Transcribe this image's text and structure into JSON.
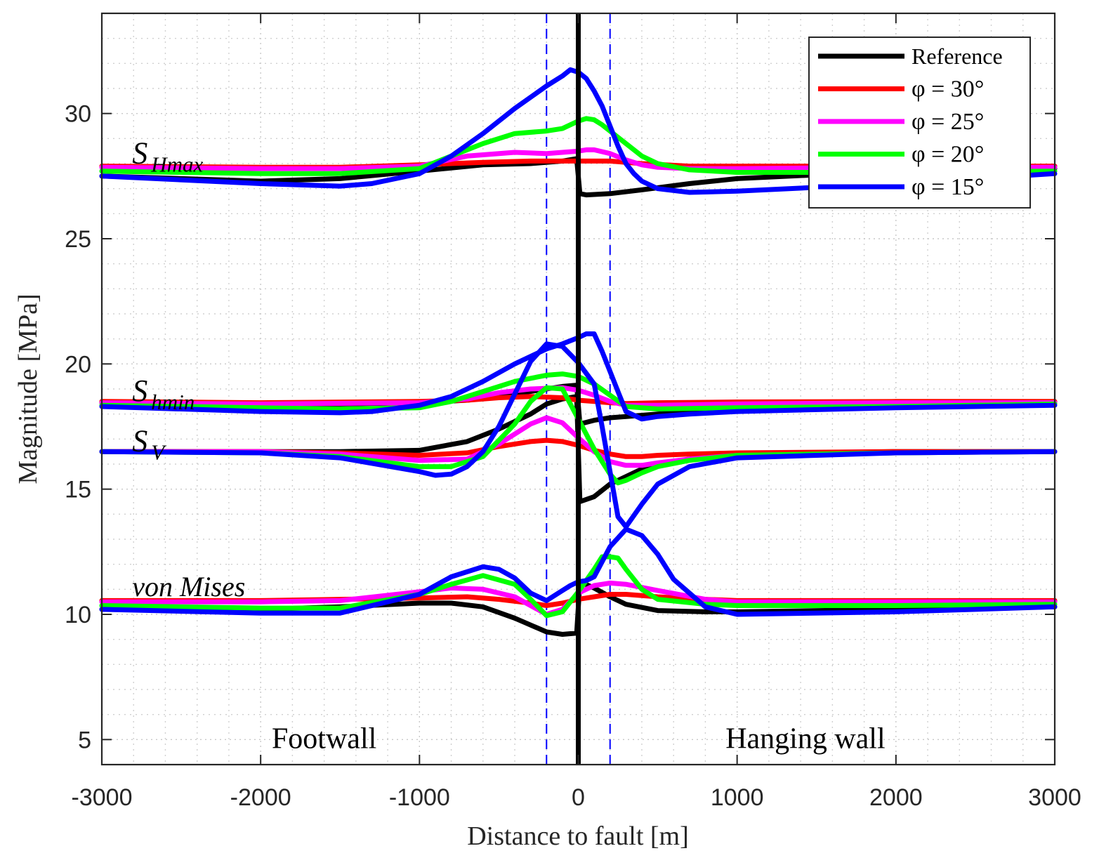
{
  "chart_data": {
    "type": "line",
    "title": "",
    "xlabel": "Distance to fault [m]",
    "ylabel": "Magnitude [MPa]",
    "xlim": [
      -3000,
      3000
    ],
    "ylim": [
      4,
      34
    ],
    "xticks": [
      -3000,
      -2000,
      -1000,
      0,
      1000,
      2000,
      3000
    ],
    "xtick_labels": [
      "-3000",
      "-2000",
      "-1000",
      "0",
      "1000",
      "2000",
      "3000"
    ],
    "yticks": [
      5,
      10,
      15,
      20,
      25,
      30
    ],
    "ytick_labels": [
      "5",
      "10",
      "15",
      "20",
      "25",
      "30"
    ],
    "grid": "major and minor (dotted)",
    "legend_position": "top-right",
    "legend": [
      {
        "label": "Reference",
        "color": "#000000"
      },
      {
        "label": "φ = 30°",
        "color": "#ff0000"
      },
      {
        "label": "φ = 25°",
        "color": "#ff00ff"
      },
      {
        "label": "φ = 20°",
        "color": "#00ff00"
      },
      {
        "label": "φ = 15°",
        "color": "#0000ff"
      }
    ],
    "annotations": {
      "shmax": {
        "main": "S",
        "sub": "Hmax",
        "x": -2800,
        "y": 28.3
      },
      "shmin": {
        "main": "S",
        "sub": "hmin",
        "x": -2800,
        "y": 18.8
      },
      "sv": {
        "main": "S",
        "sub": "V",
        "x": -2800,
        "y": 16.8
      },
      "vonmises": {
        "text": "von Mises",
        "x": -2800,
        "y": 10.9
      },
      "footwall": {
        "text": "Footwall",
        "x": -1600,
        "y": 5
      },
      "hangingwall": {
        "text": "Hanging wall",
        "x": 1430,
        "y": 5
      }
    },
    "vertical_lines": [
      {
        "name": "fault",
        "x": 0,
        "color": "#000000",
        "style": "solid"
      },
      {
        "name": "damage-zone-left",
        "x": -200,
        "color": "#0000ff",
        "style": "dashed"
      },
      {
        "name": "damage-zone-right",
        "x": 200,
        "color": "#0000ff",
        "style": "dashed"
      }
    ],
    "series": [
      {
        "name": "Reference",
        "group": "SHmax",
        "color": "#000000",
        "x": [
          -3000,
          -2000,
          -1500,
          -1000,
          -600,
          -300,
          -100,
          -10,
          10,
          50,
          200,
          400,
          700,
          1000,
          1500,
          2000,
          3000
        ],
        "y": [
          27.5,
          27.3,
          27.4,
          27.7,
          27.95,
          28.0,
          28.1,
          28.2,
          26.8,
          26.75,
          26.8,
          26.95,
          27.2,
          27.4,
          27.55,
          27.65,
          27.8
        ]
      },
      {
        "name": "φ = 30°",
        "group": "SHmax",
        "color": "#ff0000",
        "x": [
          -3000,
          -2000,
          -1500,
          -1000,
          -600,
          -300,
          0,
          200,
          400,
          700,
          1000,
          2000,
          3000
        ],
        "y": [
          27.9,
          27.85,
          27.85,
          27.95,
          28.05,
          28.1,
          28.1,
          28.1,
          28.0,
          27.9,
          27.9,
          27.9,
          27.9
        ]
      },
      {
        "name": "φ = 25°",
        "group": "SHmax",
        "color": "#ff00ff",
        "x": [
          -3000,
          -2000,
          -1500,
          -1000,
          -700,
          -400,
          -200,
          -100,
          0,
          50,
          100,
          200,
          300,
          400,
          500,
          700,
          1000,
          2000,
          3000
        ],
        "y": [
          27.85,
          27.8,
          27.8,
          27.9,
          28.3,
          28.45,
          28.4,
          28.45,
          28.5,
          28.55,
          28.55,
          28.4,
          28.15,
          27.95,
          27.85,
          27.8,
          27.8,
          27.85,
          27.85
        ]
      },
      {
        "name": "φ = 20°",
        "group": "SHmax",
        "color": "#00ff00",
        "x": [
          -3000,
          -2000,
          -1500,
          -1000,
          -800,
          -600,
          -400,
          -200,
          -100,
          0,
          50,
          100,
          150,
          200,
          300,
          400,
          500,
          700,
          1000,
          2000,
          3000
        ],
        "y": [
          27.7,
          27.6,
          27.6,
          27.8,
          28.3,
          28.8,
          29.2,
          29.3,
          29.4,
          29.7,
          29.8,
          29.75,
          29.55,
          29.3,
          28.8,
          28.3,
          28.0,
          27.75,
          27.65,
          27.65,
          27.7
        ]
      },
      {
        "name": "φ = 15°",
        "group": "SHmax",
        "color": "#0000ff",
        "x": [
          -3000,
          -2000,
          -1500,
          -1300,
          -1000,
          -800,
          -600,
          -400,
          -200,
          -100,
          -50,
          0,
          50,
          100,
          150,
          200,
          250,
          300,
          350,
          400,
          500,
          700,
          1000,
          2000,
          3000
        ],
        "y": [
          27.5,
          27.2,
          27.1,
          27.2,
          27.6,
          28.3,
          29.2,
          30.2,
          31.1,
          31.5,
          31.75,
          31.65,
          31.4,
          30.9,
          30.3,
          29.5,
          28.7,
          28.0,
          27.6,
          27.3,
          27.0,
          26.85,
          26.9,
          27.2,
          27.6
        ]
      },
      {
        "name": "Reference",
        "group": "Shmin",
        "color": "#000000",
        "x": [
          -3000,
          -2000,
          -1500,
          -1000,
          -700,
          -500,
          -300,
          -100,
          -10,
          10,
          100,
          200,
          400,
          700,
          1000,
          2000,
          3000
        ],
        "y": [
          18.45,
          18.4,
          18.4,
          18.45,
          18.55,
          18.7,
          18.9,
          19.1,
          19.15,
          17.6,
          17.75,
          17.85,
          17.95,
          18.1,
          18.2,
          18.35,
          18.45
        ]
      },
      {
        "name": "φ = 30°",
        "group": "Shmin",
        "color": "#ff0000",
        "x": [
          -3000,
          -2000,
          -1000,
          -700,
          -500,
          -300,
          -100,
          0,
          100,
          200,
          300,
          500,
          1000,
          2000,
          3000
        ],
        "y": [
          18.5,
          18.45,
          18.5,
          18.55,
          18.65,
          18.7,
          18.65,
          18.55,
          18.5,
          18.45,
          18.42,
          18.45,
          18.48,
          18.5,
          18.5
        ]
      },
      {
        "name": "φ = 25°",
        "group": "Shmin",
        "color": "#ff00ff",
        "x": [
          -3000,
          -2000,
          -1000,
          -700,
          -500,
          -300,
          -100,
          0,
          100,
          200,
          300,
          500,
          1000,
          2000,
          3000
        ],
        "y": [
          18.45,
          18.4,
          18.45,
          18.6,
          18.85,
          19.0,
          19.05,
          18.95,
          18.75,
          18.5,
          18.35,
          18.35,
          18.4,
          18.45,
          18.45
        ]
      },
      {
        "name": "φ = 20°",
        "group": "Shmin",
        "color": "#00ff00",
        "x": [
          -3000,
          -2000,
          -1500,
          -1000,
          -800,
          -600,
          -400,
          -200,
          -100,
          0,
          100,
          200,
          300,
          500,
          1000,
          2000,
          3000
        ],
        "y": [
          18.35,
          18.25,
          18.2,
          18.25,
          18.5,
          18.9,
          19.3,
          19.55,
          19.6,
          19.5,
          19.2,
          18.75,
          18.3,
          18.2,
          18.25,
          18.3,
          18.4
        ]
      },
      {
        "name": "φ = 15°",
        "group": "Shmin",
        "color": "#0000ff",
        "x": [
          -3000,
          -2000,
          -1500,
          -1300,
          -1000,
          -800,
          -600,
          -400,
          -200,
          -100,
          0,
          50,
          100,
          150,
          200,
          250,
          300,
          400,
          500,
          700,
          1000,
          2000,
          3000
        ],
        "y": [
          18.3,
          18.1,
          18.05,
          18.1,
          18.35,
          18.7,
          19.3,
          20.0,
          20.6,
          20.8,
          21.05,
          21.2,
          21.2,
          20.5,
          19.7,
          18.9,
          18.1,
          17.8,
          17.9,
          18.0,
          18.1,
          18.25,
          18.35
        ]
      },
      {
        "name": "Reference",
        "group": "SV",
        "color": "#000000",
        "x": [
          -3000,
          -2000,
          -1500,
          -1000,
          -700,
          -500,
          -300,
          -200,
          -100,
          -10,
          10,
          100,
          200,
          300,
          400,
          600,
          800,
          1000,
          2000,
          3000
        ],
        "y": [
          16.5,
          16.5,
          16.5,
          16.55,
          16.9,
          17.4,
          18.0,
          18.4,
          18.6,
          18.7,
          14.5,
          14.7,
          15.2,
          15.5,
          15.8,
          16.1,
          16.3,
          16.4,
          16.5,
          16.5
        ]
      },
      {
        "name": "φ = 30°",
        "group": "SV",
        "color": "#ff0000",
        "x": [
          -3000,
          -2000,
          -1500,
          -1000,
          -700,
          -500,
          -300,
          -200,
          -100,
          0,
          100,
          200,
          300,
          400,
          500,
          700,
          1000,
          2000,
          3000
        ],
        "y": [
          16.5,
          16.5,
          16.45,
          16.35,
          16.45,
          16.7,
          16.9,
          16.95,
          16.9,
          16.75,
          16.55,
          16.4,
          16.3,
          16.3,
          16.35,
          16.4,
          16.45,
          16.5,
          16.5
        ]
      },
      {
        "name": "φ = 25°",
        "group": "SV",
        "color": "#ff00ff",
        "x": [
          -3000,
          -2000,
          -1500,
          -1000,
          -700,
          -500,
          -300,
          -200,
          -100,
          0,
          100,
          200,
          300,
          400,
          500,
          700,
          1000,
          2000,
          3000
        ],
        "y": [
          16.5,
          16.5,
          16.4,
          16.15,
          16.2,
          16.8,
          17.6,
          17.85,
          17.65,
          17.05,
          16.5,
          16.1,
          15.95,
          15.95,
          16.05,
          16.2,
          16.35,
          16.45,
          16.5
        ]
      },
      {
        "name": "φ = 20°",
        "group": "SV",
        "color": "#00ff00",
        "x": [
          -3000,
          -2000,
          -1500,
          -1000,
          -800,
          -600,
          -400,
          -300,
          -200,
          -100,
          0,
          100,
          200,
          250,
          300,
          400,
          500,
          700,
          1000,
          2000,
          3000
        ],
        "y": [
          16.5,
          16.45,
          16.3,
          15.9,
          15.9,
          16.3,
          17.6,
          18.5,
          19.05,
          19.0,
          17.8,
          16.6,
          15.6,
          15.25,
          15.35,
          15.65,
          15.9,
          16.15,
          16.35,
          16.45,
          16.5
        ]
      },
      {
        "name": "φ = 15°",
        "group": "SV",
        "color": "#0000ff",
        "x": [
          -3000,
          -2000,
          -1500,
          -1000,
          -900,
          -800,
          -700,
          -600,
          -500,
          -400,
          -300,
          -200,
          -100,
          0,
          100,
          150,
          200,
          250,
          300,
          400,
          500,
          700,
          1000,
          2000,
          3000
        ],
        "y": [
          16.5,
          16.45,
          16.25,
          15.7,
          15.55,
          15.6,
          15.9,
          16.5,
          17.5,
          18.8,
          20.1,
          20.8,
          20.7,
          20.05,
          19.2,
          17.5,
          15.7,
          13.9,
          13.5,
          14.4,
          15.2,
          15.9,
          16.25,
          16.45,
          16.5
        ]
      },
      {
        "name": "Reference",
        "group": "vonMises",
        "color": "#000000",
        "x": [
          -3000,
          -2000,
          -1500,
          -1000,
          -800,
          -600,
          -400,
          -200,
          -100,
          -10,
          10,
          100,
          200,
          300,
          500,
          800,
          1000,
          2000,
          3000
        ],
        "y": [
          10.2,
          10.2,
          10.3,
          10.45,
          10.45,
          10.3,
          9.85,
          9.3,
          9.2,
          9.25,
          11.3,
          11.05,
          10.7,
          10.4,
          10.15,
          10.1,
          10.1,
          10.2,
          10.3
        ]
      },
      {
        "name": "φ = 30°",
        "group": "vonMises",
        "color": "#ff0000",
        "x": [
          -3000,
          -2000,
          -1000,
          -700,
          -500,
          -300,
          -200,
          -100,
          0,
          100,
          200,
          300,
          500,
          800,
          1000,
          2000,
          3000
        ],
        "y": [
          10.55,
          10.55,
          10.65,
          10.7,
          10.6,
          10.45,
          10.35,
          10.45,
          10.6,
          10.7,
          10.8,
          10.8,
          10.7,
          10.6,
          10.55,
          10.55,
          10.55
        ]
      },
      {
        "name": "φ = 25°",
        "group": "vonMises",
        "color": "#ff00ff",
        "x": [
          -3000,
          -2000,
          -1500,
          -1000,
          -800,
          -600,
          -400,
          -300,
          -200,
          -100,
          0,
          100,
          200,
          300,
          500,
          800,
          1000,
          2000,
          3000
        ],
        "y": [
          10.5,
          10.5,
          10.55,
          10.9,
          11.05,
          11.0,
          10.7,
          10.35,
          10.0,
          10.2,
          10.85,
          11.15,
          11.25,
          11.2,
          10.95,
          10.6,
          10.5,
          10.5,
          10.5
        ]
      },
      {
        "name": "φ = 20°",
        "group": "vonMises",
        "color": "#00ff00",
        "x": [
          -3000,
          -2000,
          -1500,
          -1000,
          -800,
          -600,
          -400,
          -300,
          -200,
          -100,
          0,
          100,
          150,
          200,
          250,
          300,
          400,
          500,
          800,
          1000,
          2000,
          3000
        ],
        "y": [
          10.35,
          10.25,
          10.25,
          10.8,
          11.2,
          11.55,
          11.2,
          10.6,
          9.95,
          10.1,
          10.9,
          11.8,
          12.3,
          12.3,
          12.25,
          11.8,
          11.0,
          10.6,
          10.4,
          10.35,
          10.35,
          10.4
        ]
      },
      {
        "name": "φ = 15°",
        "group": "vonMises",
        "color": "#0000ff",
        "x": [
          -3000,
          -2000,
          -1500,
          -1000,
          -800,
          -600,
          -500,
          -400,
          -300,
          -200,
          -100,
          -50,
          0,
          50,
          100,
          150,
          200,
          300,
          400,
          500,
          600,
          800,
          1000,
          2000,
          3000
        ],
        "y": [
          10.2,
          10.05,
          10.05,
          10.8,
          11.5,
          11.9,
          11.8,
          11.45,
          10.85,
          10.55,
          10.95,
          11.15,
          11.3,
          11.35,
          11.5,
          12.1,
          12.7,
          13.4,
          13.15,
          12.4,
          11.4,
          10.3,
          10.0,
          10.1,
          10.3
        ]
      }
    ]
  }
}
